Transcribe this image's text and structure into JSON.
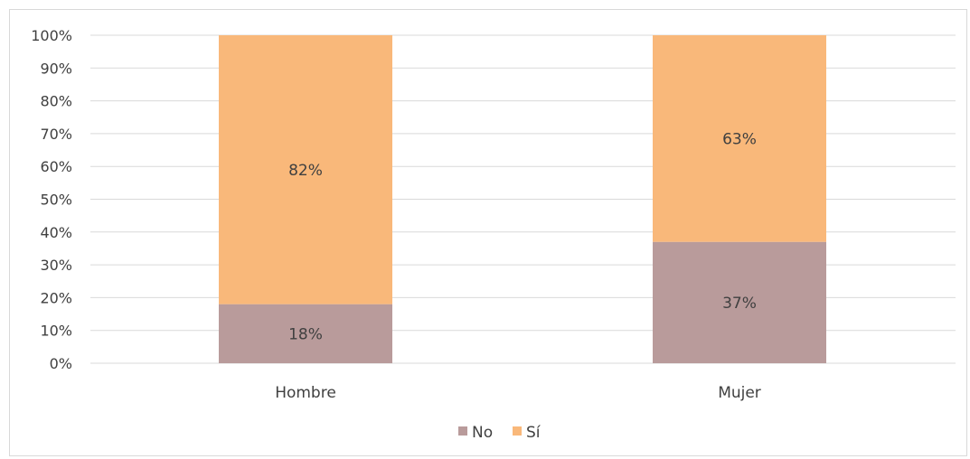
{
  "chart_data": {
    "type": "bar",
    "stacked": true,
    "categories": [
      "Hombre",
      "Mujer"
    ],
    "series": [
      {
        "name": "No",
        "values": [
          18,
          37
        ],
        "labels": [
          "18%",
          "37%"
        ],
        "color": "#b99b9b"
      },
      {
        "name": "Sí",
        "values": [
          82,
          63
        ],
        "labels": [
          "82%",
          "63%"
        ],
        "color": "#f9b87a"
      }
    ],
    "y_ticks": [
      "0%",
      "10%",
      "20%",
      "30%",
      "40%",
      "50%",
      "60%",
      "70%",
      "80%",
      "90%",
      "100%"
    ],
    "ylim": [
      0,
      100
    ],
    "grid": true,
    "legend_position": "bottom",
    "title": "",
    "xlabel": "",
    "ylabel": ""
  }
}
